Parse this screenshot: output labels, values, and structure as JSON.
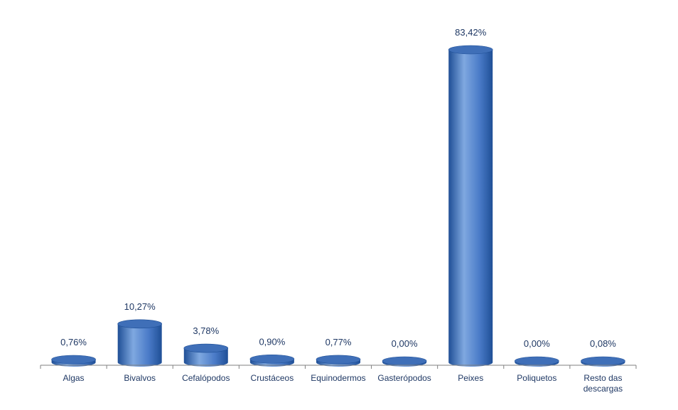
{
  "colors": {
    "bar_light": "#7fa8e0",
    "bar_mid": "#4a7bc8",
    "bar_dark": "#1f4f96",
    "bar_top": "#3f6fb8",
    "axis": "#808080",
    "label_text": "#1f3864",
    "category_text": "#1f3864"
  },
  "chart_data": {
    "type": "bar",
    "title": "",
    "xlabel": "",
    "ylabel": "",
    "ylim": [
      0,
      100
    ],
    "grid": false,
    "legend": "none",
    "categories": [
      "Algas",
      "Bivalvos",
      "Cefalópodos",
      "Crustáceos",
      "Equinodermos",
      "Gasterópodos",
      "Peixes",
      "Poliquetos",
      "Resto das descargas"
    ],
    "category_label_lines": [
      [
        "Algas"
      ],
      [
        "Bivalvos"
      ],
      [
        "Cefalópodos"
      ],
      [
        "Crustáceos"
      ],
      [
        "Equinodermos"
      ],
      [
        "Gasterópodos"
      ],
      [
        "Peixes"
      ],
      [
        "Poliquetos"
      ],
      [
        "Resto das",
        "descargas"
      ]
    ],
    "values": [
      0.76,
      10.27,
      3.78,
      0.9,
      0.77,
      0.0,
      83.42,
      0.0,
      0.08
    ],
    "data_labels": [
      "0,76%",
      "10,27%",
      "3,78%",
      "0,90%",
      "0,77%",
      "0,00%",
      "83,42%",
      "0,00%",
      "0,08%"
    ]
  }
}
